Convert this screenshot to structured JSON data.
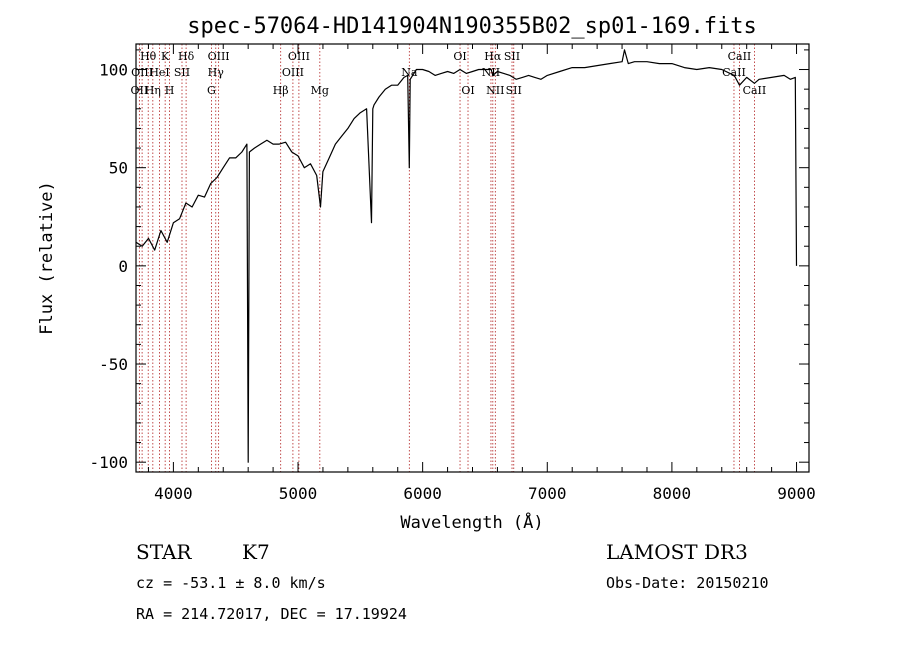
{
  "chart_data": {
    "type": "line",
    "title": "spec-57064-HD141904N190355B02_sp01-169.fits",
    "xlabel": "Wavelength (Å)",
    "ylabel": "Flux (relative)",
    "xlim": [
      3700,
      9100
    ],
    "ylim": [
      -105,
      113
    ],
    "xticks": [
      4000,
      5000,
      6000,
      7000,
      8000,
      9000
    ],
    "yticks": [
      -100,
      -50,
      0,
      50,
      100
    ],
    "grid": false,
    "series": [
      {
        "x": [
          3700,
          3750,
          3800,
          3850,
          3900,
          3950,
          4000,
          4050,
          4100,
          4150,
          4200,
          4250,
          4300,
          4350,
          4400,
          4450,
          4500,
          4550,
          4590,
          4600,
          4610,
          4650,
          4700,
          4750,
          4800,
          4850,
          4900,
          4950,
          5000,
          5050,
          5100,
          5150,
          5180,
          5200,
          5250,
          5300,
          5350,
          5400,
          5450,
          5500,
          5550,
          5590,
          5600,
          5610,
          5650,
          5700,
          5750,
          5800,
          5850,
          5880,
          5893,
          5900,
          5950,
          6000,
          6050,
          6100,
          6150,
          6200,
          6250,
          6300,
          6350,
          6400,
          6450,
          6500,
          6550,
          6563,
          6600,
          6650,
          6700,
          6750,
          6800,
          6850,
          6900,
          6950,
          7000,
          7100,
          7200,
          7300,
          7400,
          7500,
          7600,
          7620,
          7650,
          7700,
          7800,
          7900,
          8000,
          8100,
          8200,
          8300,
          8400,
          8500,
          8542,
          8600,
          8662,
          8700,
          8800,
          8900,
          8950,
          8990,
          9000
        ],
        "y": [
          12,
          10,
          14,
          8,
          18,
          12,
          22,
          24,
          32,
          30,
          36,
          35,
          42,
          45,
          50,
          55,
          55,
          58,
          62,
          -100,
          58,
          60,
          62,
          64,
          62,
          62,
          63,
          58,
          56,
          50,
          52,
          46,
          30,
          48,
          55,
          62,
          66,
          70,
          75,
          78,
          80,
          22,
          80,
          82,
          86,
          90,
          92,
          92,
          96,
          97,
          50,
          95,
          100,
          100,
          99,
          97,
          98,
          99,
          98,
          100,
          98,
          99,
          100,
          100,
          100,
          97,
          99,
          98,
          97,
          95,
          96,
          97,
          96,
          95,
          97,
          99,
          101,
          101,
          102,
          103,
          104,
          110,
          103,
          104,
          104,
          103,
          103,
          101,
          100,
          101,
          100,
          97,
          92,
          96,
          93,
          95,
          96,
          97,
          95,
          96,
          0
        ]
      }
    ],
    "line_markers": [
      {
        "label": "Hθ",
        "x": 3798,
        "row": 1
      },
      {
        "label": "OII",
        "x": 3727,
        "row": 3
      },
      {
        "label": "OIII",
        "x": 3749,
        "row": 2
      },
      {
        "label": "Hη",
        "x": 3835,
        "row": 3
      },
      {
        "label": "K",
        "x": 3934,
        "row": 1
      },
      {
        "label": "HeI",
        "x": 3889,
        "row": 2
      },
      {
        "label": "H",
        "x": 3969,
        "row": 3
      },
      {
        "label": "Hδ",
        "x": 4102,
        "row": 1
      },
      {
        "label": "SII",
        "x": 4069,
        "row": 2
      },
      {
        "label": "OIII",
        "x": 4363,
        "row": 1
      },
      {
        "label": "Hγ",
        "x": 4340,
        "row": 2
      },
      {
        "label": "G",
        "x": 4305,
        "row": 3
      },
      {
        "label": "Hβ",
        "x": 4861,
        "row": 3
      },
      {
        "label": "OIII",
        "x": 5007,
        "row": 1
      },
      {
        "label": "OIII",
        "x": 4959,
        "row": 2
      },
      {
        "label": "Mg",
        "x": 5175,
        "row": 3
      },
      {
        "label": "Na",
        "x": 5893,
        "row": 2
      },
      {
        "label": "OI",
        "x": 6300,
        "row": 1
      },
      {
        "label": "OI",
        "x": 6364,
        "row": 3
      },
      {
        "label": "Hα",
        "x": 6563,
        "row": 1
      },
      {
        "label": "NII",
        "x": 6548,
        "row": 2
      },
      {
        "label": "NII",
        "x": 6583,
        "row": 3
      },
      {
        "label": "SII",
        "x": 6717,
        "row": 1
      },
      {
        "label": "SII",
        "x": 6731,
        "row": 3
      },
      {
        "label": "CaII",
        "x": 8542,
        "row": 1
      },
      {
        "label": "CaII",
        "x": 8498,
        "row": 2
      },
      {
        "label": "CaII",
        "x": 8662,
        "row": 3
      }
    ]
  },
  "footer": {
    "object_class": "STAR",
    "subclass": "K7",
    "survey": "LAMOST DR3",
    "redshift": "cz = -53.1 ± 8.0 km/s",
    "obs_date": "Obs-Date: 20150210",
    "coords": "RA = 214.72017, DEC =  17.19924"
  },
  "colors": {
    "spectrum": "#000000",
    "marker": "#b22222"
  }
}
